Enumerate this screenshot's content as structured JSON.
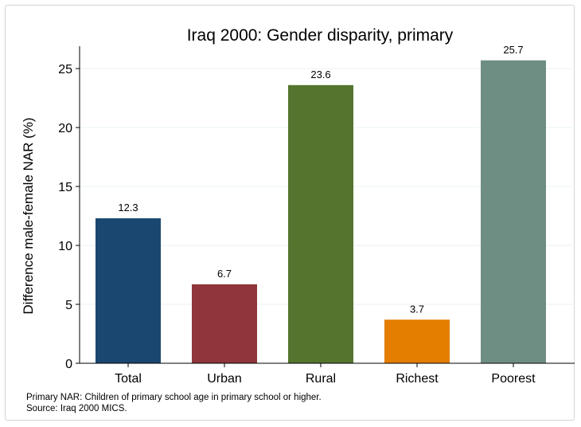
{
  "chart_data": {
    "type": "bar",
    "title": "Iraq 2000: Gender disparity, primary",
    "xlabel": "",
    "ylabel": "Difference male-female NAR (%)",
    "categories": [
      "Total",
      "Urban",
      "Rural",
      "Richest",
      "Poorest"
    ],
    "values": [
      12.3,
      6.7,
      23.6,
      3.7,
      25.7
    ],
    "data_labels": [
      "12.3",
      "6.7",
      "23.6",
      "3.7",
      "25.7"
    ],
    "colors": [
      "#1a476f",
      "#90353b",
      "#55752f",
      "#e37e00",
      "#6e8e84"
    ],
    "ylim": [
      0,
      26.9
    ],
    "yticks": [
      0,
      5,
      10,
      15,
      20,
      25
    ],
    "grid": true,
    "legend": "none"
  },
  "notes": {
    "line1": "Primary NAR: Children of primary school age in primary school or higher.",
    "line2": "Source: Iraq 2000 MICS."
  }
}
